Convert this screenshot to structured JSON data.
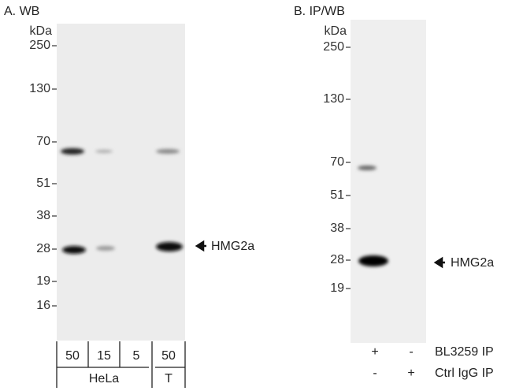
{
  "panel_a": {
    "title": "A. WB",
    "unit": "kDa",
    "markers": [
      250,
      130,
      70,
      51,
      38,
      28,
      19,
      16
    ],
    "annotation": "HMG2a",
    "lanes": [
      "50",
      "15",
      "5",
      "50"
    ],
    "groups": [
      "HeLa",
      "T"
    ]
  },
  "panel_b": {
    "title": "B. IP/WB",
    "unit": "kDa",
    "markers": [
      250,
      130,
      70,
      51,
      38,
      28,
      19
    ],
    "annotation": "HMG2a",
    "rows": [
      {
        "label": "BL3259 IP",
        "lanes": [
          "+",
          "-"
        ]
      },
      {
        "label": "Ctrl IgG IP",
        "lanes": [
          "-",
          "+"
        ]
      }
    ]
  }
}
